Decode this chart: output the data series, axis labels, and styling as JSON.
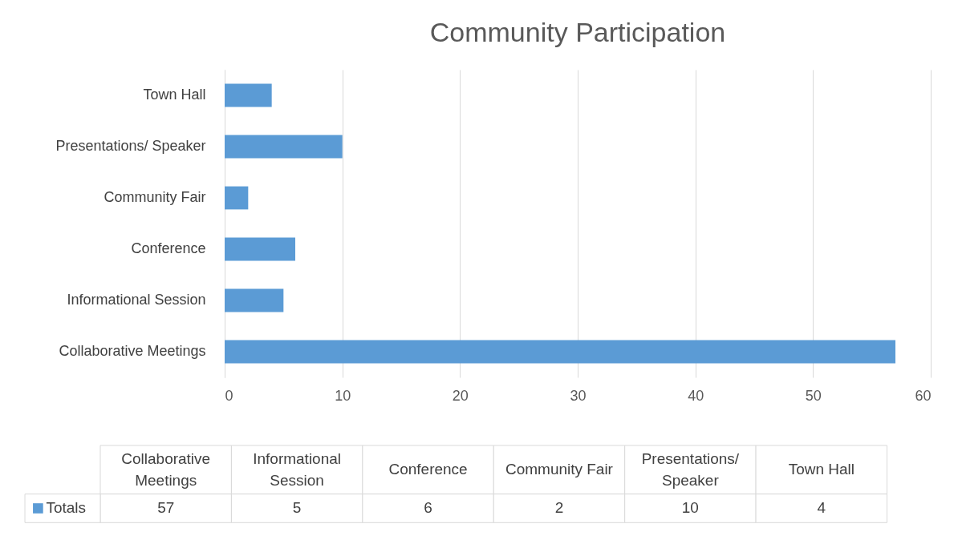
{
  "chart_data": {
    "type": "bar",
    "orientation": "horizontal",
    "title": "Community Participation",
    "categories": [
      "Town Hall",
      "Presentations/ Speaker",
      "Community Fair",
      "Conference",
      "Informational Session",
      "Collaborative Meetings"
    ],
    "series": [
      {
        "name": "Totals",
        "color": "#5b9bd5",
        "values": [
          4,
          10,
          2,
          6,
          5,
          57
        ]
      }
    ],
    "xlim": [
      0,
      60
    ],
    "xticks": [
      0,
      10,
      20,
      30,
      40,
      50,
      60
    ],
    "grid": "x",
    "legend": "bottom",
    "value_labels": [
      "4",
      "10",
      "2",
      "6",
      "5",
      "57"
    ]
  }
}
